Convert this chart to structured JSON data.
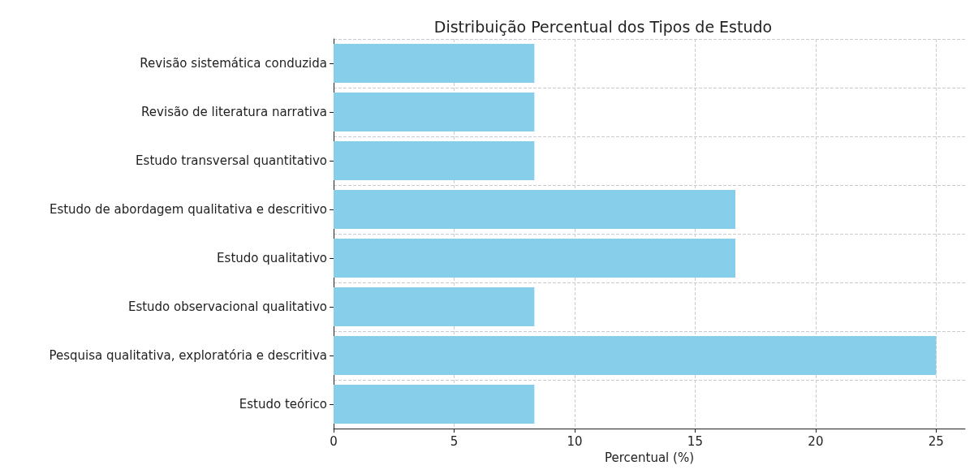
{
  "chart_data": {
    "type": "bar",
    "orientation": "horizontal",
    "title": "Distribuição Percentual dos Tipos de Estudo",
    "xlabel": "Percentual (%)",
    "categories": [
      "Revisão sistemática conduzida",
      "Revisão de literatura narrativa",
      "Estudo transversal quantitativo",
      "Estudo de abordagem qualitativa e descritivo",
      "Estudo qualitativo",
      "Estudo observacional qualitativo",
      "Pesquisa qualitativa, exploratória e descritiva",
      "Estudo teórico"
    ],
    "values": [
      8.33,
      8.33,
      8.33,
      16.67,
      16.67,
      8.33,
      25,
      8.33
    ],
    "color": "#87ceeb",
    "xlim": [
      0,
      26.2
    ],
    "xticks": [
      0,
      5,
      10,
      15,
      20,
      25
    ],
    "grid": true
  }
}
